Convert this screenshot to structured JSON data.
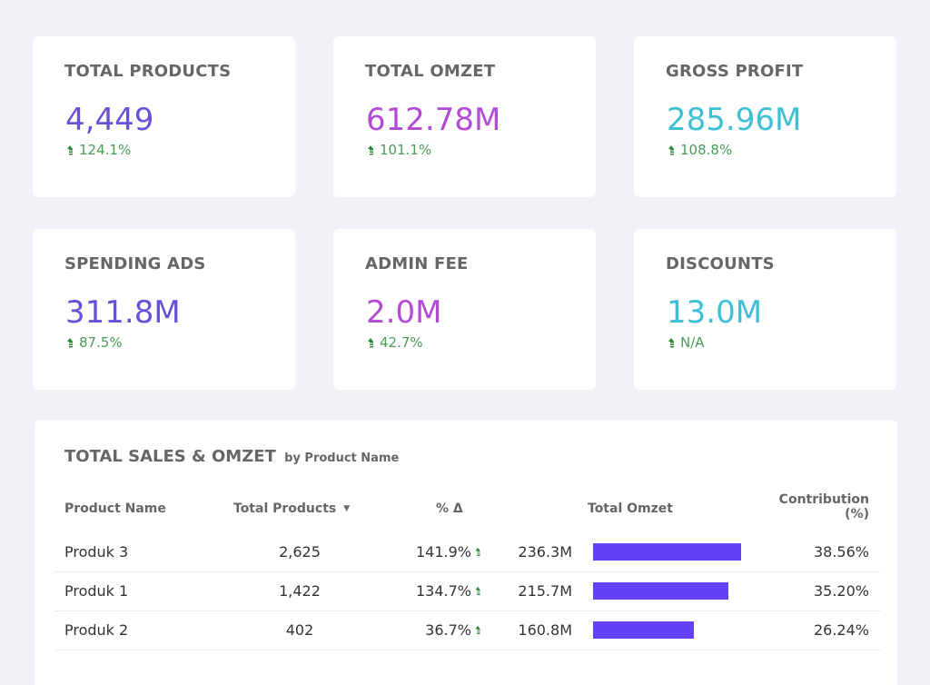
{
  "colors": {
    "background": "#f1f2f8",
    "purple_value": "#6a4fd8",
    "magenta_value": "#b44bd6",
    "cyan_value": "#3fbfd3",
    "delta_green": "#4a9b57",
    "bar": "#6441f7"
  },
  "kpis": [
    {
      "title": "TOTAL PRODUCTS",
      "value": "4,449",
      "delta": "124.1%",
      "delta_icon": "up-arrow-icon",
      "color": "#6a4fd8"
    },
    {
      "title": "TOTAL OMZET",
      "value": "612.78M",
      "delta": "101.1%",
      "delta_icon": "up-arrow-icon",
      "color": "#b44bd6"
    },
    {
      "title": "GROSS PROFIT",
      "value": "285.96M",
      "delta": "108.8%",
      "delta_icon": "up-arrow-icon",
      "color": "#3fbfd3"
    },
    {
      "title": "SPENDING ADS",
      "value": "311.8M",
      "delta": "87.5%",
      "delta_icon": "up-arrow-icon",
      "color": "#6a4fd8"
    },
    {
      "title": "ADMIN FEE",
      "value": "2.0M",
      "delta": "42.7%",
      "delta_icon": "up-arrow-icon",
      "color": "#b44bd6"
    },
    {
      "title": "DISCOUNTS",
      "value": "13.0M",
      "delta": "N/A",
      "delta_icon": "up-arrow-icon",
      "color": "#3fbfd3"
    }
  ],
  "table": {
    "title": "TOTAL SALES & OMZET",
    "subtitle": "by Product Name",
    "columns": {
      "product_name": "Product Name",
      "total_products": "Total Products",
      "sort_indicator": "▼",
      "pct_delta": "% Δ",
      "total_omzet": "Total Omzet",
      "contribution_line1": "Contribution",
      "contribution_line2": "(%)"
    },
    "rows": [
      {
        "name": "Produk 3",
        "total_products": "2,625",
        "pct_delta": "141.9%",
        "total_omzet": "236.3M",
        "omzet_value_m": 236.3,
        "contribution": "38.56%"
      },
      {
        "name": "Produk 1",
        "total_products": "1,422",
        "pct_delta": "134.7%",
        "total_omzet": "215.7M",
        "omzet_value_m": 215.7,
        "contribution": "35.20%"
      },
      {
        "name": "Produk 2",
        "total_products": "402",
        "pct_delta": "36.7%",
        "total_omzet": "160.8M",
        "omzet_value_m": 160.8,
        "contribution": "26.24%"
      }
    ]
  }
}
